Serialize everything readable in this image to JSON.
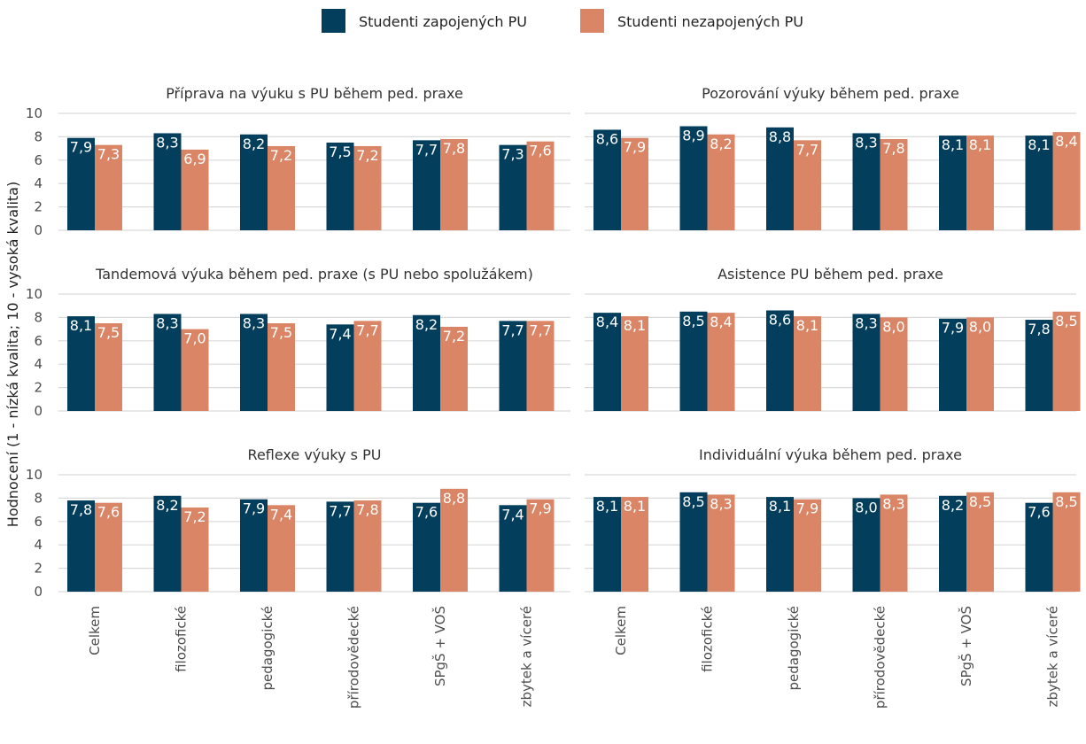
{
  "chart_data": {
    "type": "bar",
    "ylabel": "Hodnocení (1 - nízká kvalita; 10 - vysoká kvalita)",
    "ylim": [
      0,
      10
    ],
    "yticks": [
      "0",
      "2",
      "4",
      "6",
      "8",
      "10"
    ],
    "categories": [
      "Celkem",
      "filozofické",
      "pedagogické",
      "přírodovědecké",
      "SPgŠ + VOŠ",
      "zbytek a víceré"
    ],
    "legend_position": "top",
    "grid": true,
    "series": [
      {
        "name": "Studenti zapojených PU",
        "color": "#033f5c"
      },
      {
        "name": "Studenti nezapojených PU",
        "color": "#d98566"
      }
    ],
    "panels": [
      {
        "title": "Příprava na výuku s PU během ped. praxe",
        "values": [
          [
            7.9,
            8.3,
            8.2,
            7.5,
            7.7,
            7.3
          ],
          [
            7.3,
            6.9,
            7.2,
            7.2,
            7.8,
            7.6
          ]
        ],
        "labels": [
          [
            "7,9",
            "8,3",
            "8,2",
            "7,5",
            "7,7",
            "7,3"
          ],
          [
            "7,3",
            "6,9",
            "7,2",
            "7,2",
            "7,8",
            "7,6"
          ]
        ]
      },
      {
        "title": "Pozorování výuky během ped. praxe",
        "values": [
          [
            8.6,
            8.9,
            8.8,
            8.3,
            8.1,
            8.1
          ],
          [
            7.9,
            8.2,
            7.7,
            7.8,
            8.1,
            8.4
          ]
        ],
        "labels": [
          [
            "8,6",
            "8,9",
            "8,8",
            "8,3",
            "8,1",
            "8,1"
          ],
          [
            "7,9",
            "8,2",
            "7,7",
            "7,8",
            "8,1",
            "8,4"
          ]
        ]
      },
      {
        "title": "Tandemová výuka během ped. praxe (s PU nebo spolužákem)",
        "values": [
          [
            8.1,
            8.3,
            8.3,
            7.4,
            8.2,
            7.7
          ],
          [
            7.5,
            7.0,
            7.5,
            7.7,
            7.2,
            7.7
          ]
        ],
        "labels": [
          [
            "8,1",
            "8,3",
            "8,3",
            "7,4",
            "8,2",
            "7,7"
          ],
          [
            "7,5",
            "7,0",
            "7,5",
            "7,7",
            "7,2",
            "7,7"
          ]
        ]
      },
      {
        "title": "Asistence PU během ped. praxe",
        "values": [
          [
            8.4,
            8.5,
            8.6,
            8.3,
            7.9,
            7.8
          ],
          [
            8.1,
            8.4,
            8.1,
            8.0,
            8.0,
            8.5
          ]
        ],
        "labels": [
          [
            "8,4",
            "8,5",
            "8,6",
            "8,3",
            "7,9",
            "7,8"
          ],
          [
            "8,1",
            "8,4",
            "8,1",
            "8,0",
            "8,0",
            "8,5"
          ]
        ]
      },
      {
        "title": "Reflexe výuky s PU",
        "values": [
          [
            7.8,
            8.2,
            7.9,
            7.7,
            7.6,
            7.4
          ],
          [
            7.6,
            7.2,
            7.4,
            7.8,
            8.8,
            7.9
          ]
        ],
        "labels": [
          [
            "7,8",
            "8,2",
            "7,9",
            "7,7",
            "7,6",
            "7,4"
          ],
          [
            "7,6",
            "7,2",
            "7,4",
            "7,8",
            "8,8",
            "7,9"
          ]
        ]
      },
      {
        "title": "Individuální výuka během ped. praxe",
        "values": [
          [
            8.1,
            8.5,
            8.1,
            8.0,
            8.2,
            7.6
          ],
          [
            8.1,
            8.3,
            7.9,
            8.3,
            8.5,
            8.5
          ]
        ],
        "labels": [
          [
            "8,1",
            "8,5",
            "8,1",
            "8,0",
            "8,2",
            "7,6"
          ],
          [
            "8,1",
            "8,3",
            "7,9",
            "8,3",
            "8,5",
            "8,5"
          ]
        ]
      }
    ]
  }
}
